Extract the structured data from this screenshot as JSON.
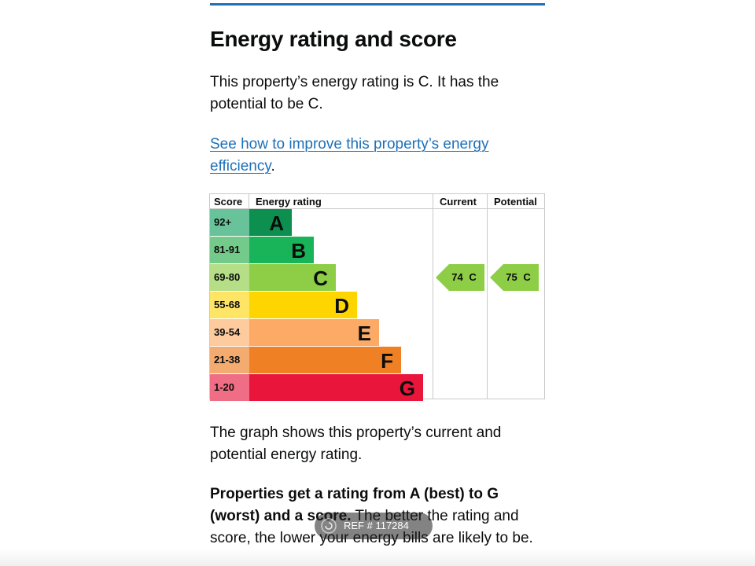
{
  "heading": "Energy rating and score",
  "intro": "This property’s energy rating is C. It has the potential to be C.",
  "improve_link": "See how to improve this property’s energy efficiency",
  "improve_period": ".",
  "chart_data": {
    "type": "bar",
    "headers": {
      "score": "Score",
      "rating": "Energy rating",
      "current": "Current",
      "potential": "Potential"
    },
    "bands": [
      {
        "score": "92+",
        "letter": "A",
        "color": "#0c8f4f",
        "score_color": "#68c39b"
      },
      {
        "score": "81-91",
        "letter": "B",
        "color": "#19b459",
        "score_color": "#74ca8a"
      },
      {
        "score": "69-80",
        "letter": "C",
        "color": "#8dce46",
        "score_color": "#b6de87"
      },
      {
        "score": "55-68",
        "letter": "D",
        "color": "#ffd500",
        "score_color": "#ffe566"
      },
      {
        "score": "39-54",
        "letter": "E",
        "color": "#fcaa65",
        "score_color": "#fdcb9e"
      },
      {
        "score": "21-38",
        "letter": "F",
        "color": "#ef8023",
        "score_color": "#f4ab6f"
      },
      {
        "score": "1-20",
        "letter": "G",
        "color": "#e9153b",
        "score_color": "#f06e85"
      }
    ],
    "current": {
      "value": 74,
      "rating": "C",
      "label": "74 C"
    },
    "potential": {
      "value": 75,
      "rating": "C",
      "label": "75 C"
    }
  },
  "graph_text": "The graph shows this property’s current and potential energy rating.",
  "properties_bold": "Properties get a rating from A (best) to G (worst) and a score.",
  "properties_rest": " The better the rating and score, the lower your energy bills are likely to be.",
  "watermark": "REF # 117284"
}
